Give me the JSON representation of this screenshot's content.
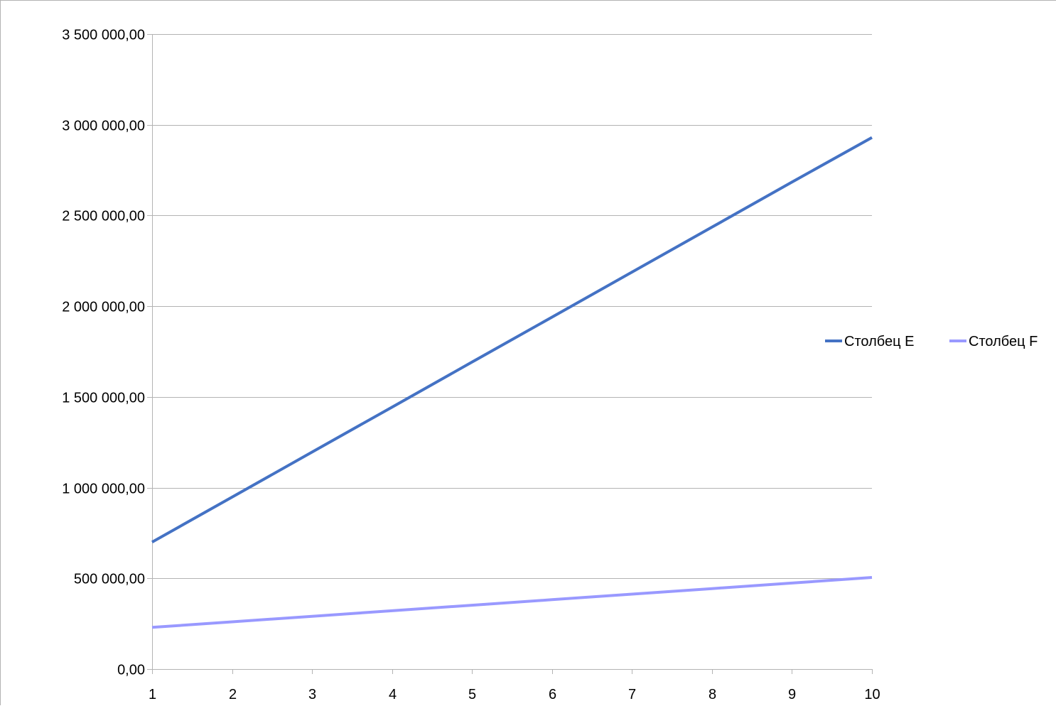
{
  "chart_data": {
    "type": "line",
    "title": "",
    "xlabel": "",
    "ylabel": "",
    "x": [
      1,
      2,
      3,
      4,
      5,
      6,
      7,
      8,
      9,
      10
    ],
    "xlim": [
      1,
      10
    ],
    "ylim": [
      0,
      3500000
    ],
    "x_tick_labels": [
      "1",
      "2",
      "3",
      "4",
      "5",
      "6",
      "7",
      "8",
      "9",
      "10"
    ],
    "y_ticks": [
      0,
      500000,
      1000000,
      1500000,
      2000000,
      2500000,
      3000000,
      3500000
    ],
    "y_tick_labels": [
      "0,00",
      "500 000,00",
      "1 000 000,00",
      "1 500 000,00",
      "2 000 000,00",
      "2 500 000,00",
      "3 000 000,00",
      "3 500 000,00"
    ],
    "grid": "horizontal",
    "legend_position": "right",
    "series": [
      {
        "name": "Столбец E",
        "color": "#4472c4",
        "values": [
          700000,
          948000,
          1196000,
          1444000,
          1692000,
          1940000,
          2188000,
          2436000,
          2684000,
          2930000
        ]
      },
      {
        "name": "Столбец F",
        "color": "#9999ff",
        "values": [
          230000,
          260500,
          291000,
          321500,
          352000,
          382500,
          413000,
          443500,
          474000,
          505000
        ]
      }
    ]
  }
}
